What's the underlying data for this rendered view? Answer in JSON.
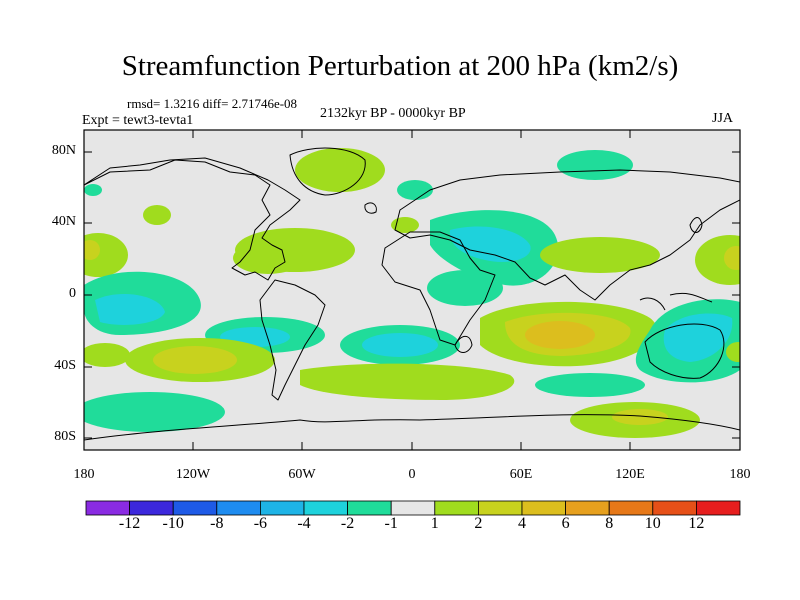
{
  "title": "Streamfunction Perturbation at 200 hPa (km2/s)",
  "stats": "rmsd= 1.3216 diff= 2.71746e-08",
  "period": "2132kyr BP - 0000kyr BP",
  "experiment": "Expt = tewt3-tevta1",
  "season": "JJA",
  "lat_labels": [
    "80N",
    "40N",
    "0",
    "40S",
    "80S"
  ],
  "lon_labels": [
    "180",
    "120W",
    "60W",
    "0",
    "60E",
    "120E",
    "180"
  ],
  "colorbar": {
    "labels": [
      "-12",
      "-10",
      "-8",
      "-6",
      "-4",
      "-2",
      "-1",
      "1",
      "2",
      "4",
      "6",
      "8",
      "10",
      "12"
    ],
    "colors": [
      "#8a2be2",
      "#3c28dc",
      "#1e5ae6",
      "#1e8cf0",
      "#1eb4e6",
      "#1ed2dc",
      "#20dc9a",
      "#e6e6e6",
      "#a0dc1e",
      "#c8d21e",
      "#dcbe1e",
      "#e6a01e",
      "#e67818",
      "#e65018",
      "#e61e1e"
    ]
  },
  "color_scale": {
    "neutral": "#e6e6e6",
    "neg1": "#20dc9a",
    "neg2": "#1ed2dc",
    "pos1": "#a0dc1e",
    "pos2": "#c8d21e",
    "pos3": "#dcbe1e"
  }
}
